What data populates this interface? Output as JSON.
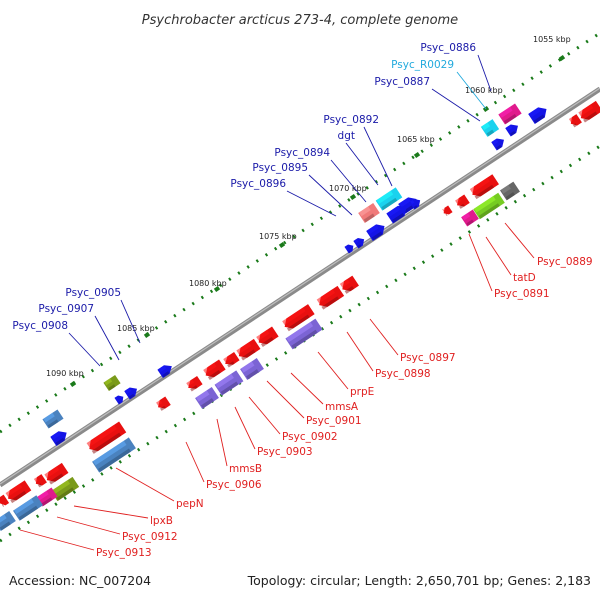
{
  "title": "Psychrobacter arcticus 273-4, complete genome",
  "footer": {
    "accession": "Accession: NC_007204",
    "summary": "Topology: circular; Length: 2,650,701 bp; Genes: 2,183"
  },
  "colors": {
    "backbone": "#8a8a8a",
    "ruler": "#1a7a1a",
    "label_forward": "#1a1aa8",
    "label_reverse": "#e02020",
    "label_rna": "#22aadd"
  },
  "ruler_ticks": [
    "1055 kbp",
    "1060 kbp",
    "1065 kbp",
    "1070 kbp",
    "1075 kbp",
    "1080 kbp",
    "1085 kbp",
    "1090 kbp"
  ],
  "forward_labels": [
    {
      "name": "Psyc_0886",
      "color": "#1a1aa8"
    },
    {
      "name": "Psyc_R0029",
      "color": "#22aadd"
    },
    {
      "name": "Psyc_0887",
      "color": "#1a1aa8"
    },
    {
      "name": "Psyc_0892",
      "color": "#1a1aa8"
    },
    {
      "name": "dgt",
      "color": "#1a1aa8"
    },
    {
      "name": "Psyc_0894",
      "color": "#1a1aa8"
    },
    {
      "name": "Psyc_0895",
      "color": "#1a1aa8"
    },
    {
      "name": "Psyc_0896",
      "color": "#1a1aa8"
    },
    {
      "name": "Psyc_0905",
      "color": "#1a1aa8"
    },
    {
      "name": "Psyc_0907",
      "color": "#1a1aa8"
    },
    {
      "name": "Psyc_0908",
      "color": "#1a1aa8"
    }
  ],
  "reverse_labels": [
    {
      "name": "Psyc_0889"
    },
    {
      "name": "tatD"
    },
    {
      "name": "Psyc_0891"
    },
    {
      "name": "Psyc_0897"
    },
    {
      "name": "Psyc_0898"
    },
    {
      "name": "prpE"
    },
    {
      "name": "mmsA"
    },
    {
      "name": "Psyc_0901"
    },
    {
      "name": "Psyc_0902"
    },
    {
      "name": "Psyc_0903"
    },
    {
      "name": "mmsB"
    },
    {
      "name": "Psyc_0906"
    },
    {
      "name": "pepN"
    },
    {
      "name": "lpxB"
    },
    {
      "name": "Psyc_0912"
    },
    {
      "name": "Psyc_0913"
    }
  ]
}
